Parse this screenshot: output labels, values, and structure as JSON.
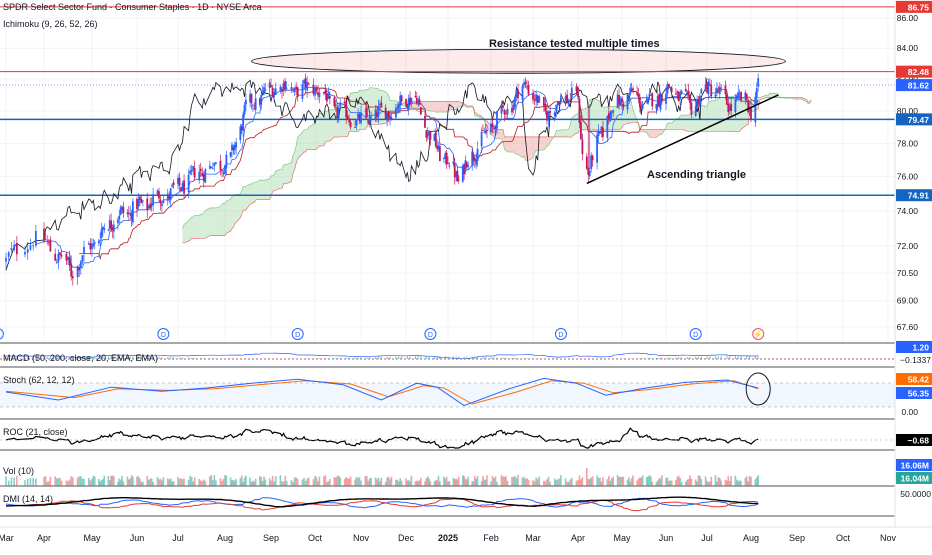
{
  "header": {
    "symbol_title": "SPDR Select Sector Fund - Consumer Staples · 1D · NYSE Arca",
    "indicator_label": "Ichimoku (9, 26, 52, 26)"
  },
  "annotations": {
    "resistance": "Resistance tested multiple times",
    "triangle": "Ascending triangle"
  },
  "colors": {
    "candle_up": "#2962ff",
    "candle_down": "#c2185b",
    "conversion_line": "#2962ff",
    "base_line": "#b71c1c",
    "lagging_span": "#131722",
    "cloud_bull": "#a5d6a7",
    "cloud_bear": "#ef9a9a",
    "resistance_line": "#e53935",
    "support_line": "#1565c0",
    "stoch_k": "#2962ff",
    "stoch_d": "#ff6d00",
    "dmi_plus": "#2962ff",
    "dmi_minus": "#e53935",
    "adx": "#000000"
  },
  "chart_data": {
    "type": "candlestick",
    "x_dates": [
      "2024-03-18",
      "2024-04-01",
      "2024-05-01",
      "2024-06-03",
      "2024-07-01",
      "2024-08-01",
      "2024-09-03",
      "2024-10-01",
      "2024-11-01",
      "2024-12-02",
      "2025-01-02",
      "2025-02-03",
      "2025-03-03",
      "2025-04-01",
      "2025-05-01",
      "2025-06-02",
      "2025-07-01",
      "2025-08-01",
      "2025-09-02",
      "2025-10-01",
      "2025-11-03"
    ],
    "x_tick_labels": [
      "Mar",
      "Apr",
      "May",
      "Jun",
      "Jul",
      "Aug",
      "Sep",
      "Oct",
      "Nov",
      "Dec",
      "2025",
      "Feb",
      "Mar",
      "Apr",
      "May",
      "Jun",
      "Jul",
      "Aug",
      "Sep",
      "Oct",
      "Nov"
    ],
    "close_keyframes": [
      [
        "2024-03-18",
        71.2
      ],
      [
        "2024-03-28",
        72.5
      ],
      [
        "2024-04-12",
        71.3
      ],
      [
        "2024-04-18",
        70.6
      ],
      [
        "2024-05-02",
        72.2
      ],
      [
        "2024-05-17",
        73.6
      ],
      [
        "2024-05-31",
        74.1
      ],
      [
        "2024-06-14",
        74.6
      ],
      [
        "2024-06-28",
        75.1
      ],
      [
        "2024-07-15",
        76.3
      ],
      [
        "2024-08-05",
        77.0
      ],
      [
        "2024-08-16",
        80.2
      ],
      [
        "2024-09-06",
        81.6
      ],
      [
        "2024-09-20",
        81.3
      ],
      [
        "2024-10-01",
        81.5
      ],
      [
        "2024-10-15",
        80.1
      ],
      [
        "2024-10-31",
        79.3
      ],
      [
        "2024-11-08",
        79.7
      ],
      [
        "2024-11-25",
        80.1
      ],
      [
        "2024-12-02",
        80.9
      ],
      [
        "2024-12-10",
        80.6
      ],
      [
        "2024-12-20",
        78.3
      ],
      [
        "2025-01-10",
        75.9
      ],
      [
        "2025-01-17",
        76.9
      ],
      [
        "2025-01-31",
        78.7
      ],
      [
        "2025-02-14",
        80.2
      ],
      [
        "2025-02-27",
        81.7
      ],
      [
        "2025-03-10",
        79.8
      ],
      [
        "2025-03-31",
        81.3
      ],
      [
        "2025-04-04",
        77.3
      ],
      [
        "2025-04-08",
        76.4
      ],
      [
        "2025-04-22",
        79.9
      ],
      [
        "2025-05-06",
        81.1
      ],
      [
        "2025-05-20",
        80.4
      ],
      [
        "2025-06-05",
        81.4
      ],
      [
        "2025-06-20",
        80.3
      ],
      [
        "2025-07-03",
        81.6
      ],
      [
        "2025-07-18",
        80.3
      ],
      [
        "2025-07-29",
        80.9
      ],
      [
        "2025-08-01",
        79.8
      ],
      [
        "2025-08-06",
        81.4
      ]
    ],
    "price_axis_ticks": [
      67.6,
      69.0,
      70.5,
      72.0,
      74.0,
      76.0,
      78.0,
      80.0,
      82.0,
      84.0,
      86.0
    ],
    "price_tick_labels": [
      "67.60",
      "69.00",
      "70.50",
      "72.00",
      "74.00",
      "76.00",
      "78.00",
      "80.00",
      "82.00",
      "84.00",
      "86.00"
    ],
    "ylim": [
      67.0,
      87.0
    ],
    "log_scale": true,
    "horizontal_levels": [
      {
        "value": 86.75,
        "label": "86.75",
        "role": "resistance"
      },
      {
        "value": 82.48,
        "label": "82.48",
        "role": "resistance"
      },
      {
        "value": 79.47,
        "label": "79.47",
        "role": "support"
      },
      {
        "value": 74.91,
        "label": "74.91",
        "role": "support"
      }
    ],
    "last_price_label": "81.62",
    "last_price": 81.62,
    "trendline": {
      "start": [
        "2025-04-07",
        75.6
      ],
      "end": [
        "2025-08-20",
        81.0
      ]
    },
    "resistance_ellipse": {
      "x_from": "2024-08-20",
      "x_to": "2025-08-25",
      "y_center": 83.15
    },
    "event_markers": [
      {
        "date": "2024-03-15",
        "label": "D"
      },
      {
        "date": "2024-06-21",
        "label": "D"
      },
      {
        "date": "2024-09-20",
        "label": "D"
      },
      {
        "date": "2024-12-20",
        "label": "D"
      },
      {
        "date": "2025-03-21",
        "label": "D"
      },
      {
        "date": "2025-06-23",
        "label": "D"
      },
      {
        "date": "2025-08-06",
        "label": "⚡"
      }
    ],
    "panes": {
      "macd": {
        "label": "MACD (50, 200, close, 20, EMA, EMA)",
        "value_label_1": "1.20",
        "value_label_2": "−0.1337"
      },
      "stoch": {
        "label": "Stoch (62, 12, 12)",
        "k_label": "58.42",
        "d_label": "56.35",
        "zero_label": "0.00",
        "k_keyframes": [
          [
            "2024-03-18",
            50
          ],
          [
            "2024-04-10",
            30
          ],
          [
            "2024-05-15",
            62
          ],
          [
            "2024-06-20",
            52
          ],
          [
            "2024-07-20",
            60
          ],
          [
            "2024-08-20",
            72
          ],
          [
            "2024-09-20",
            82
          ],
          [
            "2024-10-20",
            68
          ],
          [
            "2024-11-15",
            30
          ],
          [
            "2024-12-10",
            72
          ],
          [
            "2024-12-25",
            62
          ],
          [
            "2025-01-14",
            16
          ],
          [
            "2025-02-15",
            58
          ],
          [
            "2025-03-10",
            84
          ],
          [
            "2025-03-31",
            72
          ],
          [
            "2025-04-20",
            42
          ],
          [
            "2025-05-15",
            58
          ],
          [
            "2025-06-15",
            74
          ],
          [
            "2025-07-15",
            80
          ],
          [
            "2025-08-06",
            60
          ]
        ],
        "d_keyframes": [
          [
            "2024-03-18",
            52
          ],
          [
            "2024-04-20",
            36
          ],
          [
            "2024-05-20",
            58
          ],
          [
            "2024-06-25",
            54
          ],
          [
            "2024-07-25",
            58
          ],
          [
            "2024-08-25",
            68
          ],
          [
            "2024-09-25",
            78
          ],
          [
            "2024-10-25",
            70
          ],
          [
            "2024-11-20",
            38
          ],
          [
            "2024-12-15",
            66
          ],
          [
            "2024-12-30",
            60
          ],
          [
            "2025-01-20",
            20
          ],
          [
            "2025-02-20",
            50
          ],
          [
            "2025-03-15",
            78
          ],
          [
            "2025-04-05",
            72
          ],
          [
            "2025-04-25",
            48
          ],
          [
            "2025-05-20",
            56
          ],
          [
            "2025-06-20",
            70
          ],
          [
            "2025-07-20",
            78
          ],
          [
            "2025-08-06",
            58
          ]
        ]
      },
      "roc": {
        "label": "ROC (21, close)",
        "value_label": "−0.68"
      },
      "vol": {
        "label": "Vol (10)",
        "value_label_1": "16.06M",
        "value_label_2": "16.04M"
      },
      "dmi": {
        "label": "DMI (14, 14)",
        "value_label": "50.0000"
      }
    }
  }
}
